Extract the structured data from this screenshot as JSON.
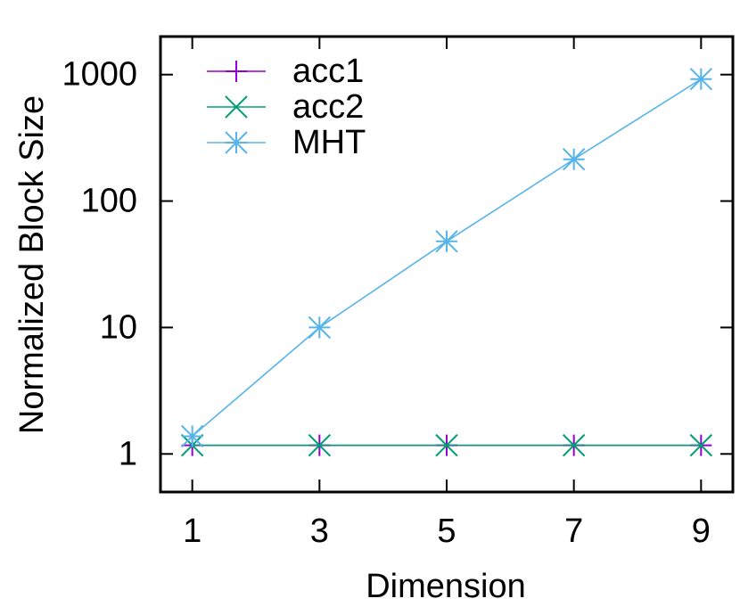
{
  "chart_data": {
    "type": "line",
    "x_label": "Dimension",
    "y_label": "Normalized Block Size",
    "x": [
      1,
      3,
      5,
      7,
      9
    ],
    "xlim": [
      0.5,
      9.5
    ],
    "xticks": [
      1,
      3,
      5,
      7,
      9
    ],
    "ylim": [
      0.5,
      2000
    ],
    "yticks": [
      1,
      10,
      100,
      1000
    ],
    "log_y": true,
    "legend": "top-left",
    "series": [
      {
        "name": "acc1",
        "color": "#9400d3",
        "marker": "plus",
        "values": [
          1.17,
          1.17,
          1.17,
          1.17,
          1.17
        ]
      },
      {
        "name": "acc2",
        "color": "#009e73",
        "marker": "cross",
        "values": [
          1.17,
          1.17,
          1.17,
          1.17,
          1.17
        ]
      },
      {
        "name": "MHT",
        "color": "#56b4e9",
        "marker": "star",
        "values": [
          1.38,
          10,
          48,
          214,
          922
        ]
      }
    ]
  }
}
